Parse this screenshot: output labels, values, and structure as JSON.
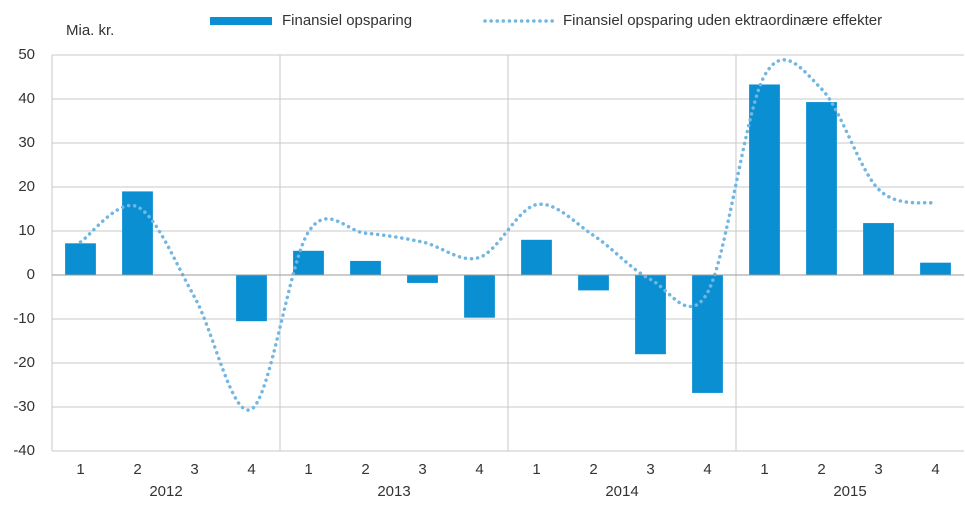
{
  "chart_data": {
    "type": "bar",
    "y_axis_label": "Mia. kr.",
    "categories": [
      "1",
      "2",
      "3",
      "4",
      "1",
      "2",
      "3",
      "4",
      "1",
      "2",
      "3",
      "4",
      "1",
      "2",
      "3",
      "4"
    ],
    "groups": [
      "2012",
      "2013",
      "2014",
      "2015"
    ],
    "series": [
      {
        "name": "Finansiel opsparing",
        "type": "bar",
        "color": "#0a8fd2",
        "values": [
          7.2,
          19,
          null,
          -10.5,
          5.5,
          3.2,
          -1.8,
          -9.7,
          8,
          -3.5,
          -18,
          -26.8,
          43.3,
          39.3,
          11.8,
          2.8
        ]
      },
      {
        "name": "Finansiel opsparing uden ektraordinære effekter",
        "type": "line",
        "color": "#72b6e2",
        "values": [
          7.5,
          15.5,
          -5,
          -30.5,
          9.8,
          9.5,
          7.5,
          4,
          16,
          9,
          -1,
          -4,
          45.3,
          42.3,
          19.5,
          16.3
        ]
      }
    ],
    "ylim": [
      -40,
      50
    ],
    "yticks": [
      -40,
      -30,
      -20,
      -10,
      0,
      10,
      20,
      30,
      40,
      50
    ],
    "grid": true
  }
}
